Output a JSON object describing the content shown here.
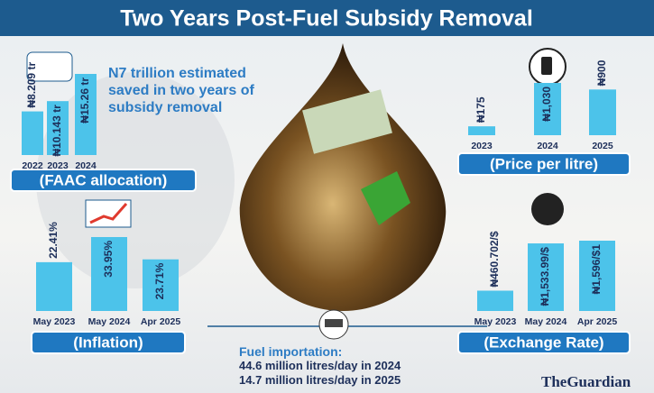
{
  "header": {
    "title": "Two Years Post-Fuel Subsidy Removal"
  },
  "annotation": "N7 trillion estimated saved in two years of subsidy removal",
  "fuel_importation": {
    "title": "Fuel importation:",
    "lines": [
      "44.6 million litres/day in 2024",
      "14.7 million litres/day in 2025"
    ]
  },
  "logo": "TheGuardian",
  "chart_data": [
    {
      "type": "bar",
      "title": "(FAAC allocation)",
      "categories": [
        "2022",
        "2023",
        "2024"
      ],
      "values": [
        8.209,
        10.143,
        15.26
      ],
      "value_labels": [
        "₦8.209 tr",
        "₦10.143 tr",
        "₦15.26 tr"
      ],
      "color": "#4cc3ea"
    },
    {
      "type": "bar",
      "title": "(Price per litre)",
      "categories": [
        "2023",
        "2024",
        "2025"
      ],
      "values": [
        175,
        1030,
        900
      ],
      "value_labels": [
        "₦175",
        "₦1,030",
        "₦900"
      ],
      "color": "#4cc3ea"
    },
    {
      "type": "bar",
      "title": "(Inflation)",
      "categories": [
        "May 2023",
        "May 2024",
        "Apr 2025"
      ],
      "values": [
        22.41,
        33.95,
        23.71
      ],
      "value_labels": [
        "22.41%",
        "33.95%",
        "23.71%"
      ],
      "color": "#4cc3ea"
    },
    {
      "type": "bar",
      "title": "(Exchange Rate)",
      "categories": [
        "May 2023",
        "May 2024",
        "Apr 2025"
      ],
      "values": [
        460.702,
        1533.99,
        1596
      ],
      "value_labels": [
        "₦460.702/$",
        "₦1,533.99/$",
        "₦1,596/$1"
      ],
      "color": "#4cc3ea"
    }
  ]
}
